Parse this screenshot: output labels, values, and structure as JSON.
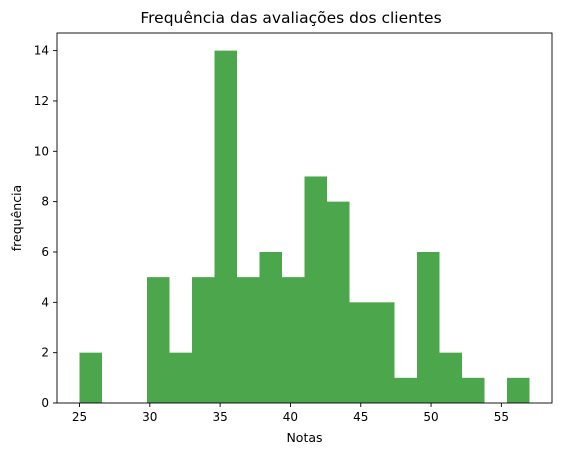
{
  "chart_data": {
    "type": "bar",
    "title": "Frequência das avaliações dos clientes",
    "xlabel": "Notas",
    "ylabel": "frequência",
    "bar_color": "#4ca64c",
    "grid": false,
    "xlim": [
      23.4,
      58.6
    ],
    "ylim": [
      0,
      14.7
    ],
    "xticks": [
      25,
      30,
      35,
      40,
      45,
      50,
      55
    ],
    "yticks": [
      0,
      2,
      4,
      6,
      8,
      10,
      12,
      14
    ],
    "bins": [
      {
        "x0": 25.0,
        "x1": 26.6,
        "value": 2
      },
      {
        "x0": 26.6,
        "x1": 28.2,
        "value": 0
      },
      {
        "x0": 28.2,
        "x1": 29.8,
        "value": 0
      },
      {
        "x0": 29.8,
        "x1": 31.4,
        "value": 5
      },
      {
        "x0": 31.4,
        "x1": 33.0,
        "value": 2
      },
      {
        "x0": 33.0,
        "x1": 34.6,
        "value": 5
      },
      {
        "x0": 34.6,
        "x1": 36.2,
        "value": 14
      },
      {
        "x0": 36.2,
        "x1": 37.8,
        "value": 5
      },
      {
        "x0": 37.8,
        "x1": 39.4,
        "value": 6
      },
      {
        "x0": 39.4,
        "x1": 41.0,
        "value": 5
      },
      {
        "x0": 41.0,
        "x1": 42.6,
        "value": 9
      },
      {
        "x0": 42.6,
        "x1": 44.2,
        "value": 8
      },
      {
        "x0": 44.2,
        "x1": 45.8,
        "value": 4
      },
      {
        "x0": 45.8,
        "x1": 47.4,
        "value": 4
      },
      {
        "x0": 47.4,
        "x1": 49.0,
        "value": 1
      },
      {
        "x0": 49.0,
        "x1": 50.6,
        "value": 6
      },
      {
        "x0": 50.6,
        "x1": 52.2,
        "value": 2
      },
      {
        "x0": 52.2,
        "x1": 53.8,
        "value": 1
      },
      {
        "x0": 53.8,
        "x1": 55.4,
        "value": 0
      },
      {
        "x0": 55.4,
        "x1": 57.0,
        "value": 1
      }
    ]
  }
}
